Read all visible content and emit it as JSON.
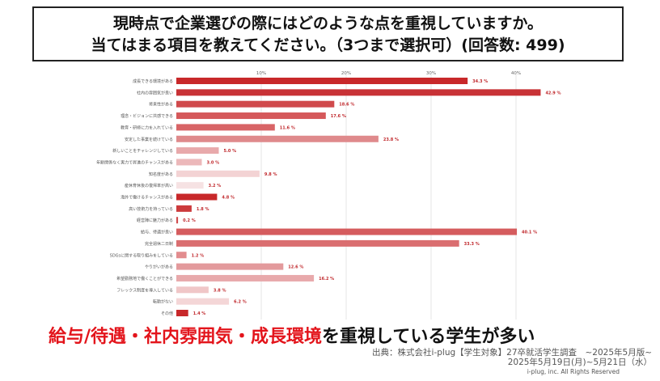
{
  "title": {
    "line1": "現時点で企業選びの際にはどのような点を重視していますか。",
    "line2": "当てはまる項目を教えてください。（3つまで選択可）(回答数: 499)"
  },
  "chart_data": {
    "type": "bar",
    "orientation": "horizontal",
    "xlim": [
      0,
      45
    ],
    "x_ticks": [
      "10%",
      "20%",
      "30%",
      "40%"
    ],
    "x_tick_values": [
      10,
      20,
      30,
      40
    ],
    "grid": true,
    "value_suffix": " %",
    "categories": [
      "成長できる環境がある",
      "社内の雰囲気が良い",
      "将来性がある",
      "理念・ビジョンに共感できる",
      "教育・研修に力を入れている",
      "安定した事業を続けている",
      "新しいことをチャレンジしている",
      "年齢関係なく実力で昇進のチャンスがある",
      "知名度がある",
      "産休育休後の復帰率が高い",
      "海外で働けるチャンスがある",
      "高い技術力を持っている",
      "経営陣に魅力がある",
      "給与、待遇が良い",
      "完全週休二日制",
      "SDGsに関する取り組みをしている",
      "やりがいがある",
      "希望勤務地で働くことができる",
      "フレックス制度を導入している",
      "転勤がない",
      "その他"
    ],
    "values": [
      34.3,
      42.9,
      18.6,
      17.6,
      11.6,
      23.8,
      5.0,
      3.0,
      9.8,
      3.2,
      4.8,
      1.8,
      0.2,
      40.1,
      33.3,
      1.2,
      12.6,
      16.2,
      3.8,
      6.2,
      1.4
    ],
    "colors": [
      "#c8282a",
      "#c83236",
      "#d04a4c",
      "#d5585a",
      "#d86466",
      "#df8a8c",
      "#e8a9ab",
      "#ecb8ba",
      "#f3d3d4",
      "#f6e2e3",
      "#c8282a",
      "#cc3a3c",
      "#d04a4c",
      "#d55c5e",
      "#da6e70",
      "#e28c8e",
      "#e39a9c",
      "#e8a9ab",
      "#f0c6c7",
      "#f4d6d7",
      "#c8282a"
    ],
    "label_color": "#c0282c"
  },
  "headline": {
    "red_part": "給与/待遇・社内雰囲気・成長環境",
    "black_part": "を重視している学生が多い"
  },
  "source": {
    "line1": "出典：株式会社i-plug【学生対象】27卒就活学生調査　~2025年5月版~",
    "line2": "2025年5月19日(月)~5月21日（水）",
    "copyright": "i-plug, inc. All Rights Reserved"
  }
}
